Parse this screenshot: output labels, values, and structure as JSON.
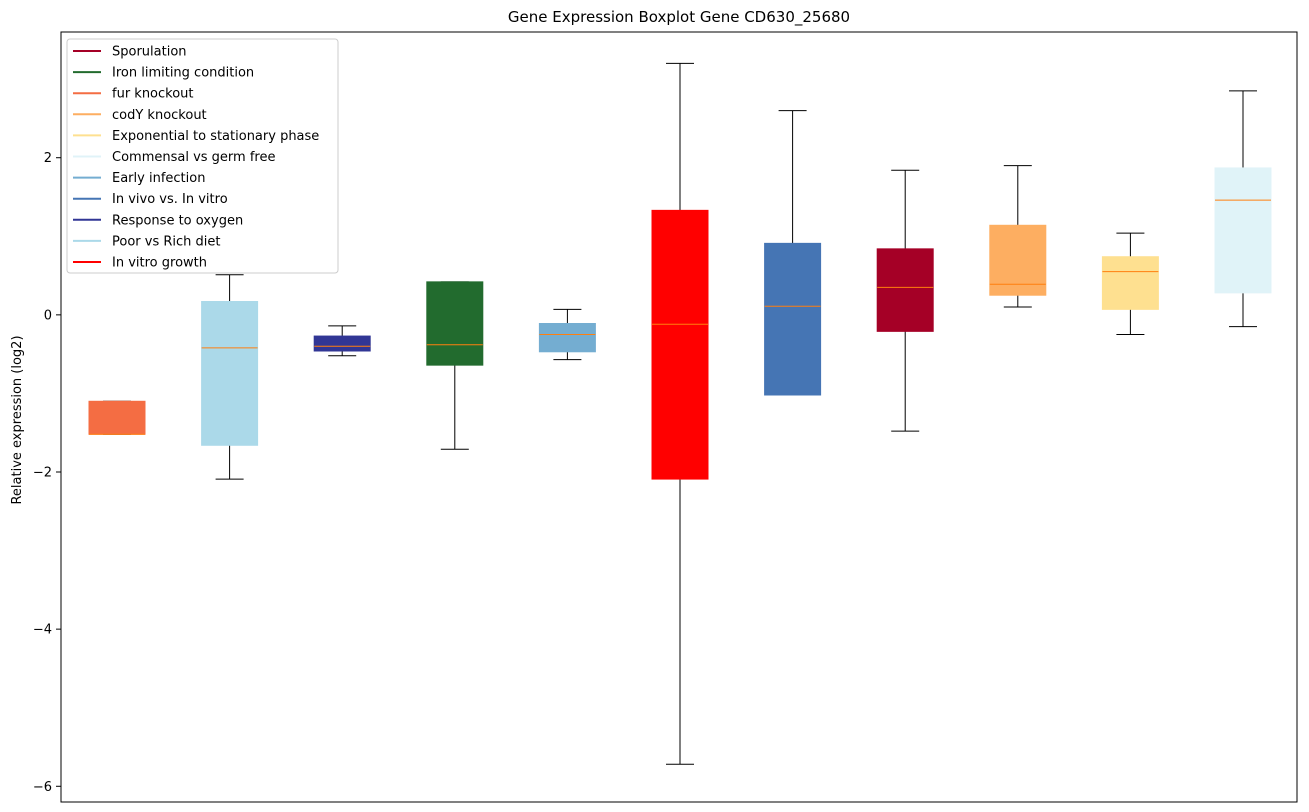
{
  "chart_data": {
    "type": "box",
    "title": "Gene Expression Boxplot Gene CD630_25680",
    "xlabel": "",
    "ylabel": "Relative expression (log2)",
    "ylim": [
      -6.2,
      3.6
    ],
    "yticks": [
      {
        "value": -6,
        "label": "−6"
      },
      {
        "value": -4,
        "label": "−4"
      },
      {
        "value": -2,
        "label": "−2"
      },
      {
        "value": 0,
        "label": "0"
      },
      {
        "value": 2,
        "label": "2"
      }
    ],
    "grid": false,
    "legend_position": "top-left",
    "median_color": "#ff7f0e",
    "whisker_color": "#000000",
    "legend": [
      {
        "label": "Sporulation",
        "color": "#a50026"
      },
      {
        "label": "Iron limiting condition",
        "color": "#226b2e"
      },
      {
        "label": "fur knockout",
        "color": "#f46d43"
      },
      {
        "label": "codY knockout",
        "color": "#fdae61"
      },
      {
        "label": "Exponential to stationary phase",
        "color": "#fee090"
      },
      {
        "label": "Commensal vs germ free",
        "color": "#e0f3f8"
      },
      {
        "label": "Early infection",
        "color": "#74add1"
      },
      {
        "label": "In vivo vs. In vitro",
        "color": "#4575b4"
      },
      {
        "label": "Response to oxygen",
        "color": "#313695"
      },
      {
        "label": "Poor vs Rich diet",
        "color": "#abd9e9"
      },
      {
        "label": "In vitro growth",
        "color": "#ff0000"
      }
    ],
    "boxes": [
      {
        "color": "#f46d43",
        "whislo": -1.52,
        "q1": -1.52,
        "med": -1.52,
        "q3": -1.1,
        "whishi": -1.1
      },
      {
        "color": "#abd9e9",
        "whislo": -2.09,
        "q1": -1.66,
        "med": -0.42,
        "q3": 0.17,
        "whishi": 0.51
      },
      {
        "color": "#313695",
        "whislo": -0.52,
        "q1": -0.46,
        "med": -0.4,
        "q3": -0.27,
        "whishi": -0.14
      },
      {
        "color": "#226b2e",
        "whislo": -1.71,
        "q1": -0.64,
        "med": -0.38,
        "q3": 0.42,
        "whishi": 0.42
      },
      {
        "color": "#74add1",
        "whislo": -0.57,
        "q1": -0.47,
        "med": -0.25,
        "q3": -0.11,
        "whishi": 0.07
      },
      {
        "color": "#ff0000",
        "whislo": -5.72,
        "q1": -2.09,
        "med": -0.12,
        "q3": 1.33,
        "whishi": 3.2
      },
      {
        "color": "#4575b4",
        "whislo": -1.02,
        "q1": -1.02,
        "med": 0.11,
        "q3": 0.91,
        "whishi": 2.6
      },
      {
        "color": "#a50026",
        "whislo": -1.48,
        "q1": -0.21,
        "med": 0.35,
        "q3": 0.84,
        "whishi": 1.84
      },
      {
        "color": "#fdae61",
        "whislo": 0.1,
        "q1": 0.25,
        "med": 0.39,
        "q3": 1.14,
        "whishi": 1.9
      },
      {
        "color": "#fee090",
        "whislo": -0.25,
        "q1": 0.07,
        "med": 0.55,
        "q3": 0.74,
        "whishi": 1.04
      },
      {
        "color": "#e0f3f8",
        "whislo": -0.15,
        "q1": 0.28,
        "med": 1.46,
        "q3": 1.87,
        "whishi": 2.85
      }
    ]
  }
}
